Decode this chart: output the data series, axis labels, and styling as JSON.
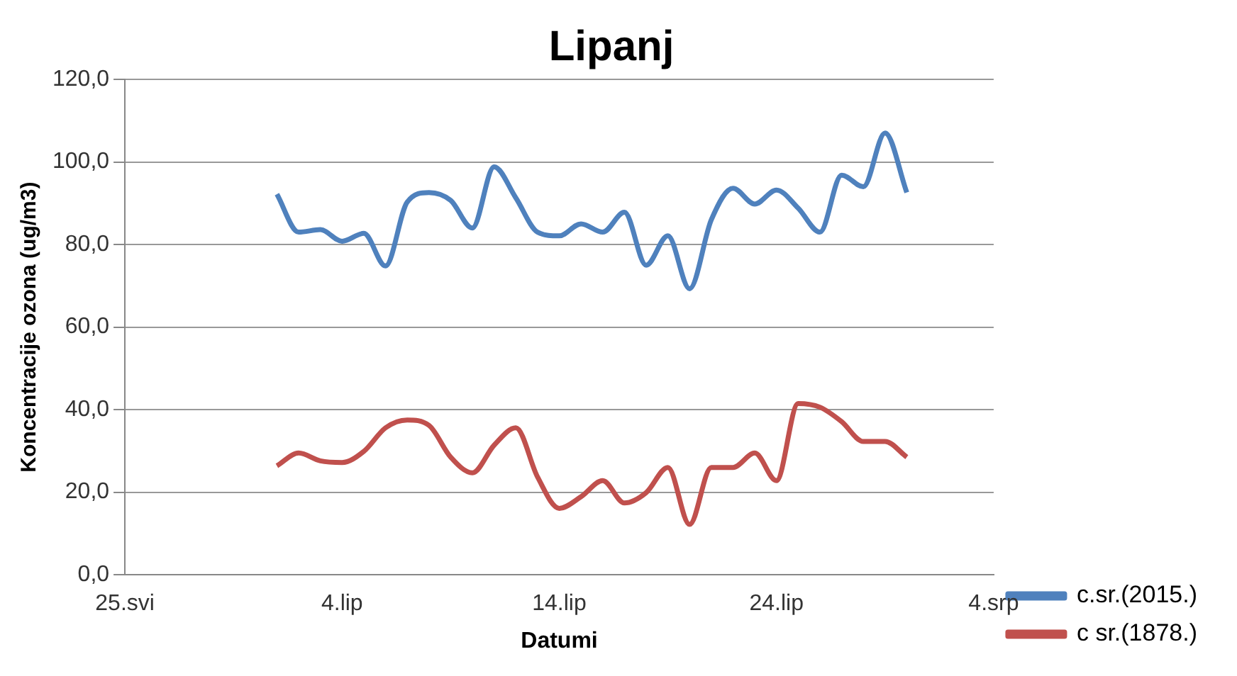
{
  "chart_data": {
    "type": "line",
    "title": "Lipanj",
    "xlabel": "Datumi",
    "ylabel": "Koncentracije ozona (ug/m3)",
    "x": [
      "--06-01",
      "--06-02",
      "--06-03",
      "--06-04",
      "--06-05",
      "--06-06",
      "--06-07",
      "--06-08",
      "--06-09",
      "--06-10",
      "--06-11",
      "--06-12",
      "--06-13",
      "--06-14",
      "--06-15",
      "--06-16",
      "--06-17",
      "--06-18",
      "--06-19",
      "--06-20",
      "--06-21",
      "--06-22",
      "--06-23",
      "--06-24",
      "--06-25",
      "--06-26",
      "--06-27",
      "--06-28",
      "--06-29",
      "--06-30"
    ],
    "series": [
      {
        "name": "c.sr.(2015.)",
        "color": "#4f81bd",
        "values": [
          92.2,
          83,
          83.6,
          80.8,
          82.7,
          74.8,
          90.3,
          92.6,
          90.7,
          84,
          98.8,
          91.3,
          83,
          82.1,
          85,
          83,
          87.8,
          75,
          82.1,
          69.3,
          86,
          93.6,
          89.8,
          93.2,
          88.8,
          83,
          96.8,
          94,
          107,
          92.6
        ]
      },
      {
        "name": "c sr.(1878.)",
        "color": "#c0504d",
        "values": [
          26.4,
          29.5,
          27.6,
          27.2,
          29.9,
          35.6,
          37.5,
          36.2,
          28.5,
          24.7,
          31.4,
          35.6,
          23.7,
          16.1,
          18.9,
          22.8,
          17.4,
          19.9,
          26,
          12.2,
          26,
          26,
          29.5,
          22.8,
          41.5,
          40.6,
          37.1,
          32.3,
          32.3,
          28.5
        ]
      }
    ],
    "xlim": [
      "--05-25",
      "--07-04"
    ],
    "xticks": [
      {
        "value": "--05-25",
        "label": "25.svi"
      },
      {
        "value": "--06-04",
        "label": "4.lip"
      },
      {
        "value": "--06-14",
        "label": "14.lip"
      },
      {
        "value": "--06-24",
        "label": "24.lip"
      },
      {
        "value": "--07-04",
        "label": "4.srp"
      }
    ],
    "ylim": [
      0,
      120
    ],
    "yticks": [
      {
        "value": 0,
        "label": "0,0"
      },
      {
        "value": 20,
        "label": "20,0"
      },
      {
        "value": 40,
        "label": "40,0"
      },
      {
        "value": 60,
        "label": "60,0"
      },
      {
        "value": 80,
        "label": "80,0"
      },
      {
        "value": 100,
        "label": "100,0"
      },
      {
        "value": 120,
        "label": "120,0"
      }
    ],
    "grid": "y",
    "legend": "bottom right",
    "marker": "none",
    "line_style": "solid"
  }
}
